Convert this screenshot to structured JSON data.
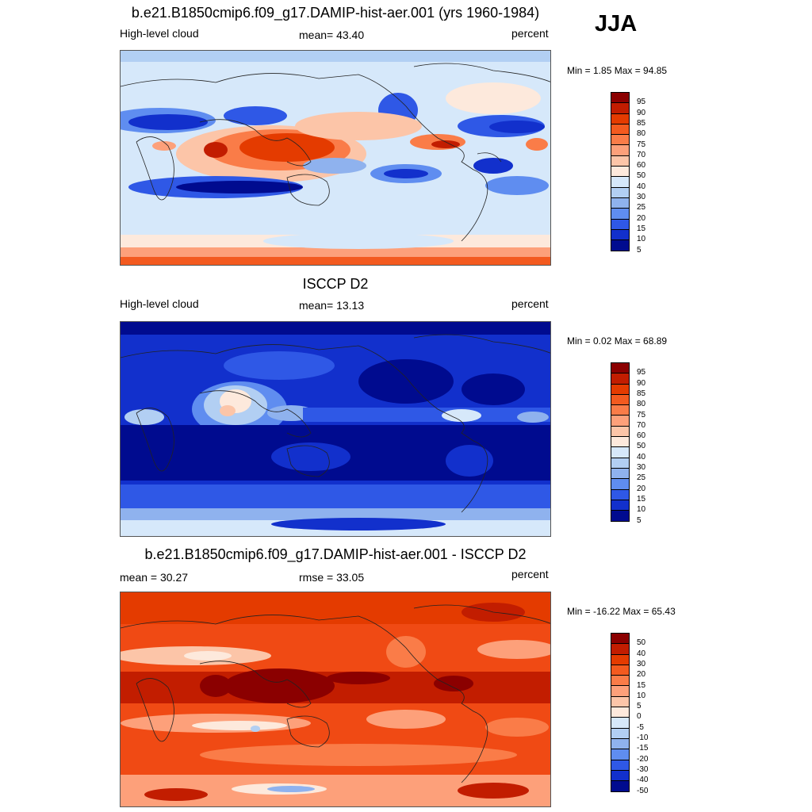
{
  "season": "JJA",
  "panels": [
    {
      "title": "b.e21.B1850cmip6.f09_g17.DAMIP-hist-aer.001 (yrs 1960-1984)",
      "left_label": "High-level cloud",
      "center_label": "mean=  43.40",
      "right_label": "percent",
      "minmax": "Min =   1.85 Max =  94.85",
      "base_color": "#d6e8fa",
      "colorbar": {
        "labels": [
          "95",
          "90",
          "85",
          "80",
          "75",
          "70",
          "60",
          "50",
          "40",
          "30",
          "25",
          "20",
          "15",
          "10",
          "5"
        ],
        "colors": [
          "#8b0000",
          "#c21d00",
          "#e43b00",
          "#f35a1f",
          "#fa7c48",
          "#fda07a",
          "#fcc5a8",
          "#fde9dc",
          "#d6e8fa",
          "#b2cff3",
          "#8fb2ee",
          "#5f8df0",
          "#2f58e6",
          "#1230cc",
          "#000b8f"
        ]
      }
    },
    {
      "title": "ISCCP D2",
      "left_label": "High-level cloud",
      "center_label": "mean=  13.13",
      "right_label": "percent",
      "minmax": "Min =   0.02 Max =  68.89",
      "base_color": "#0019b5",
      "colorbar": {
        "labels": [
          "95",
          "90",
          "85",
          "80",
          "75",
          "70",
          "60",
          "50",
          "40",
          "30",
          "25",
          "20",
          "15",
          "10",
          "5"
        ],
        "colors": [
          "#8b0000",
          "#c21d00",
          "#e43b00",
          "#f35a1f",
          "#fa7c48",
          "#fda07a",
          "#fcc5a8",
          "#fde9dc",
          "#d6e8fa",
          "#b2cff3",
          "#8fb2ee",
          "#5f8df0",
          "#2f58e6",
          "#1230cc",
          "#000b8f"
        ]
      }
    },
    {
      "title": "b.e21.B1850cmip6.f09_g17.DAMIP-hist-aer.001 - ISCCP D2",
      "left_label": "mean =  30.27",
      "center_label": "rmse =  33.05",
      "right_label": "percent",
      "minmax": "Min = -16.22 Max =  65.43",
      "base_color": "#f04a14",
      "colorbar": {
        "labels": [
          "50",
          "40",
          "30",
          "20",
          "15",
          "10",
          "5",
          "0",
          "-5",
          "-10",
          "-15",
          "-20",
          "-30",
          "-40",
          "-50"
        ],
        "colors": [
          "#8b0000",
          "#c21d00",
          "#e43b00",
          "#f35a1f",
          "#fa7c48",
          "#fda07a",
          "#fcc5a8",
          "#fde9dc",
          "#d6e8fa",
          "#b2cff3",
          "#8fb2ee",
          "#5f8df0",
          "#2f58e6",
          "#1230cc",
          "#000b8f"
        ]
      }
    }
  ]
}
